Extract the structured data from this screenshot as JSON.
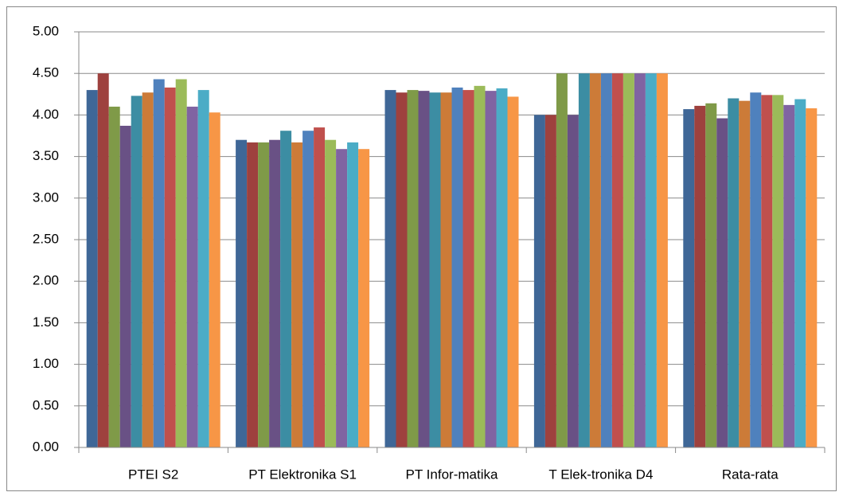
{
  "chart_data": {
    "type": "bar",
    "categories": [
      "PTEI S2",
      "PT Elektronika S1",
      "PT Infor-matika",
      "T Elek-tronika D4",
      "Rata-rata"
    ],
    "series": [
      {
        "color": "#3f6797",
        "values": [
          4.3,
          3.7,
          4.3,
          4.0,
          4.07
        ]
      },
      {
        "color": "#9e413e",
        "values": [
          4.5,
          3.67,
          4.27,
          4.0,
          4.11
        ]
      },
      {
        "color": "#7f9a48",
        "values": [
          4.1,
          3.67,
          4.3,
          4.5,
          4.14
        ]
      },
      {
        "color": "#695185",
        "values": [
          3.87,
          3.7,
          4.29,
          4.0,
          3.96
        ]
      },
      {
        "color": "#3c8da3",
        "values": [
          4.23,
          3.81,
          4.27,
          4.5,
          4.2
        ]
      },
      {
        "color": "#cc7b38",
        "values": [
          4.27,
          3.67,
          4.27,
          4.5,
          4.17
        ]
      },
      {
        "color": "#4f81bd",
        "values": [
          4.43,
          3.81,
          4.33,
          4.5,
          4.27
        ]
      },
      {
        "color": "#c0504d",
        "values": [
          4.33,
          3.85,
          4.3,
          4.5,
          4.24
        ]
      },
      {
        "color": "#9bbb59",
        "values": [
          4.43,
          3.7,
          4.35,
          4.5,
          4.24
        ]
      },
      {
        "color": "#8064a2",
        "values": [
          4.1,
          3.59,
          4.29,
          4.5,
          4.12
        ]
      },
      {
        "color": "#4bacc6",
        "values": [
          4.3,
          3.67,
          4.32,
          4.5,
          4.19
        ]
      },
      {
        "color": "#f79646",
        "values": [
          4.03,
          3.59,
          4.22,
          4.5,
          4.08
        ]
      }
    ],
    "ylim": [
      0,
      5
    ],
    "yticks": [
      {
        "value": 0,
        "label": "0.00"
      },
      {
        "value": 0.5,
        "label": "0.50"
      },
      {
        "value": 1,
        "label": "1.00"
      },
      {
        "value": 1.5,
        "label": "1.50"
      },
      {
        "value": 2,
        "label": "2.00"
      },
      {
        "value": 2.5,
        "label": "2.50"
      },
      {
        "value": 3,
        "label": "3.00"
      },
      {
        "value": 3.5,
        "label": "3.50"
      },
      {
        "value": 4,
        "label": "4.00"
      },
      {
        "value": 4.5,
        "label": "4.50"
      },
      {
        "value": 5,
        "label": "5.00"
      }
    ],
    "grid": true
  }
}
